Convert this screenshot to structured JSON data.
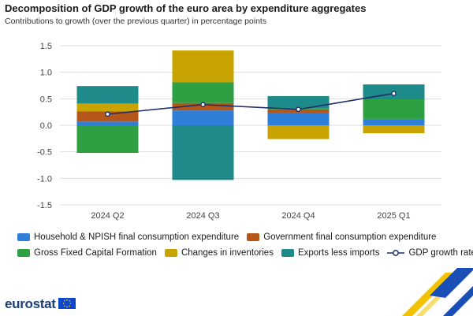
{
  "title": "Decomposition of GDP growth of the euro area by expenditure aggregates",
  "subtitle": "Contributions to growth (over the previous quarter) in percentage points",
  "logo_text": "eurostat",
  "chart_data": {
    "type": "bar",
    "stacked": true,
    "categories": [
      "2024 Q2",
      "2024 Q3",
      "2024 Q4",
      "2025 Q1"
    ],
    "ylim": [
      -1.5,
      1.5
    ],
    "yticks": [
      "1.5",
      "1.0",
      "0.5",
      "0.0",
      "-0.5",
      "-1.0",
      "-1.5"
    ],
    "ytick_values": [
      1.5,
      1.0,
      0.5,
      0.0,
      -0.5,
      -1.0,
      -1.5
    ],
    "grid": true,
    "legend_position": "bottom",
    "series": [
      {
        "name": "Household & NPISH final consumption expenditure",
        "color": "#2f7fd8",
        "values": [
          0.07,
          0.28,
          0.23,
          0.11
        ]
      },
      {
        "name": "Government final consumption expenditure",
        "color": "#b5561b",
        "values": [
          0.19,
          0.14,
          0.07,
          0.01
        ]
      },
      {
        "name": "Gross Fixed Capital Formation",
        "color": "#2ea043",
        "values": [
          -0.52,
          0.39,
          0.02,
          0.37
        ]
      },
      {
        "name": "Changes in inventories",
        "color": "#c9a400",
        "values": [
          0.15,
          0.6,
          -0.26,
          -0.15
        ]
      },
      {
        "name": "Exports less imports",
        "color": "#1f8a8a",
        "values": [
          0.33,
          -1.03,
          0.23,
          0.28
        ]
      }
    ],
    "line": {
      "name": "GDP growth rate",
      "color": "#1c2f6b",
      "values": [
        0.21,
        0.39,
        0.3,
        0.6
      ]
    }
  }
}
